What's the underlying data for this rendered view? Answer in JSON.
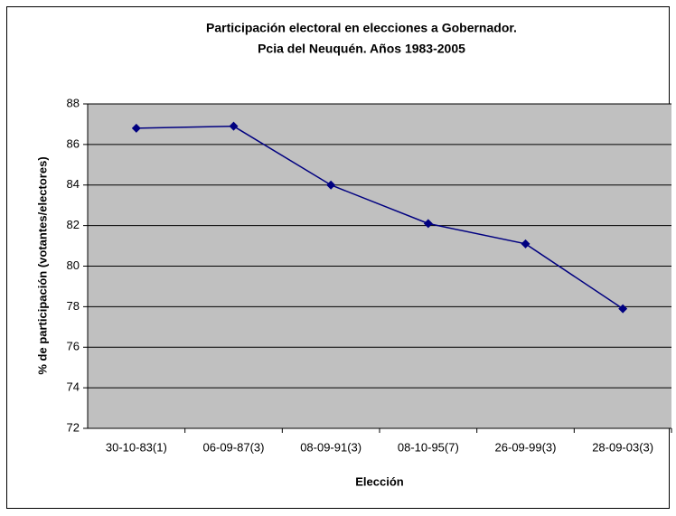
{
  "chart_data": {
    "type": "line",
    "title": [
      "Participación electoral en elecciones a Gobernador.",
      "Pcia del Neuquén. Años 1983-2005"
    ],
    "x_label": "Elección",
    "y_label": "% de participación (votantes/electores)",
    "categories": [
      "30-10-83(1)",
      "06-09-87(3)",
      "08-09-91(3)",
      "08-10-95(7)",
      "26-09-99(3)",
      "28-09-03(3)"
    ],
    "values": [
      86.8,
      86.9,
      84.0,
      82.1,
      81.1,
      77.9
    ],
    "color": "#000080",
    "ylim": [
      72,
      88
    ],
    "yticks": [
      72,
      74,
      76,
      78,
      80,
      82,
      84,
      86,
      88
    ],
    "grid": true
  }
}
